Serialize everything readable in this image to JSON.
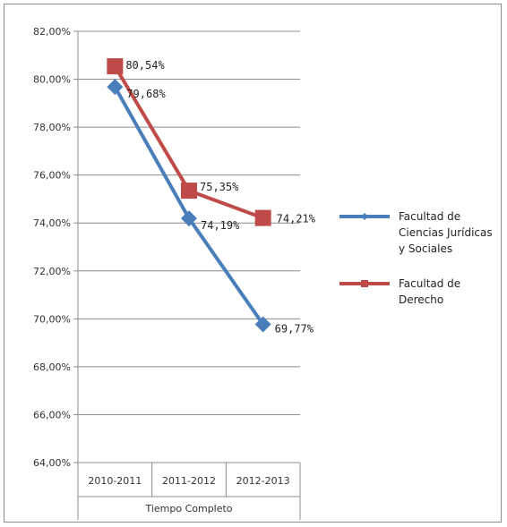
{
  "chart_data": {
    "type": "line",
    "categories": [
      "2010-2011",
      "2011-2012",
      "2012-2013"
    ],
    "category_group_label": "Tiempo Completo",
    "ylim": [
      0.64,
      0.82
    ],
    "y_ticks": [
      "64,00%",
      "66,00%",
      "68,00%",
      "70,00%",
      "72,00%",
      "74,00%",
      "76,00%",
      "78,00%",
      "80,00%",
      "82,00%"
    ],
    "grid": true,
    "legend_position": "right",
    "series": [
      {
        "name": "Facultad de Ciencias Jurídicas y Sociales",
        "legend_lines": [
          "Facultad de",
          "Ciencias Jurídicas",
          "y Sociales"
        ],
        "values": [
          0.7968,
          0.7419,
          0.6977
        ],
        "labels": [
          "79,68%",
          "74,19%",
          "69,77%"
        ],
        "color": "#4a7ebb",
        "marker": "diamond"
      },
      {
        "name": "Facultad de Derecho",
        "legend_lines": [
          "Facultad de",
          "Derecho"
        ],
        "values": [
          0.8054,
          0.7535,
          0.7421
        ],
        "labels": [
          "80,54%",
          "75,35%",
          "74,21%"
        ],
        "color": "#be4b48",
        "marker": "square"
      }
    ]
  }
}
